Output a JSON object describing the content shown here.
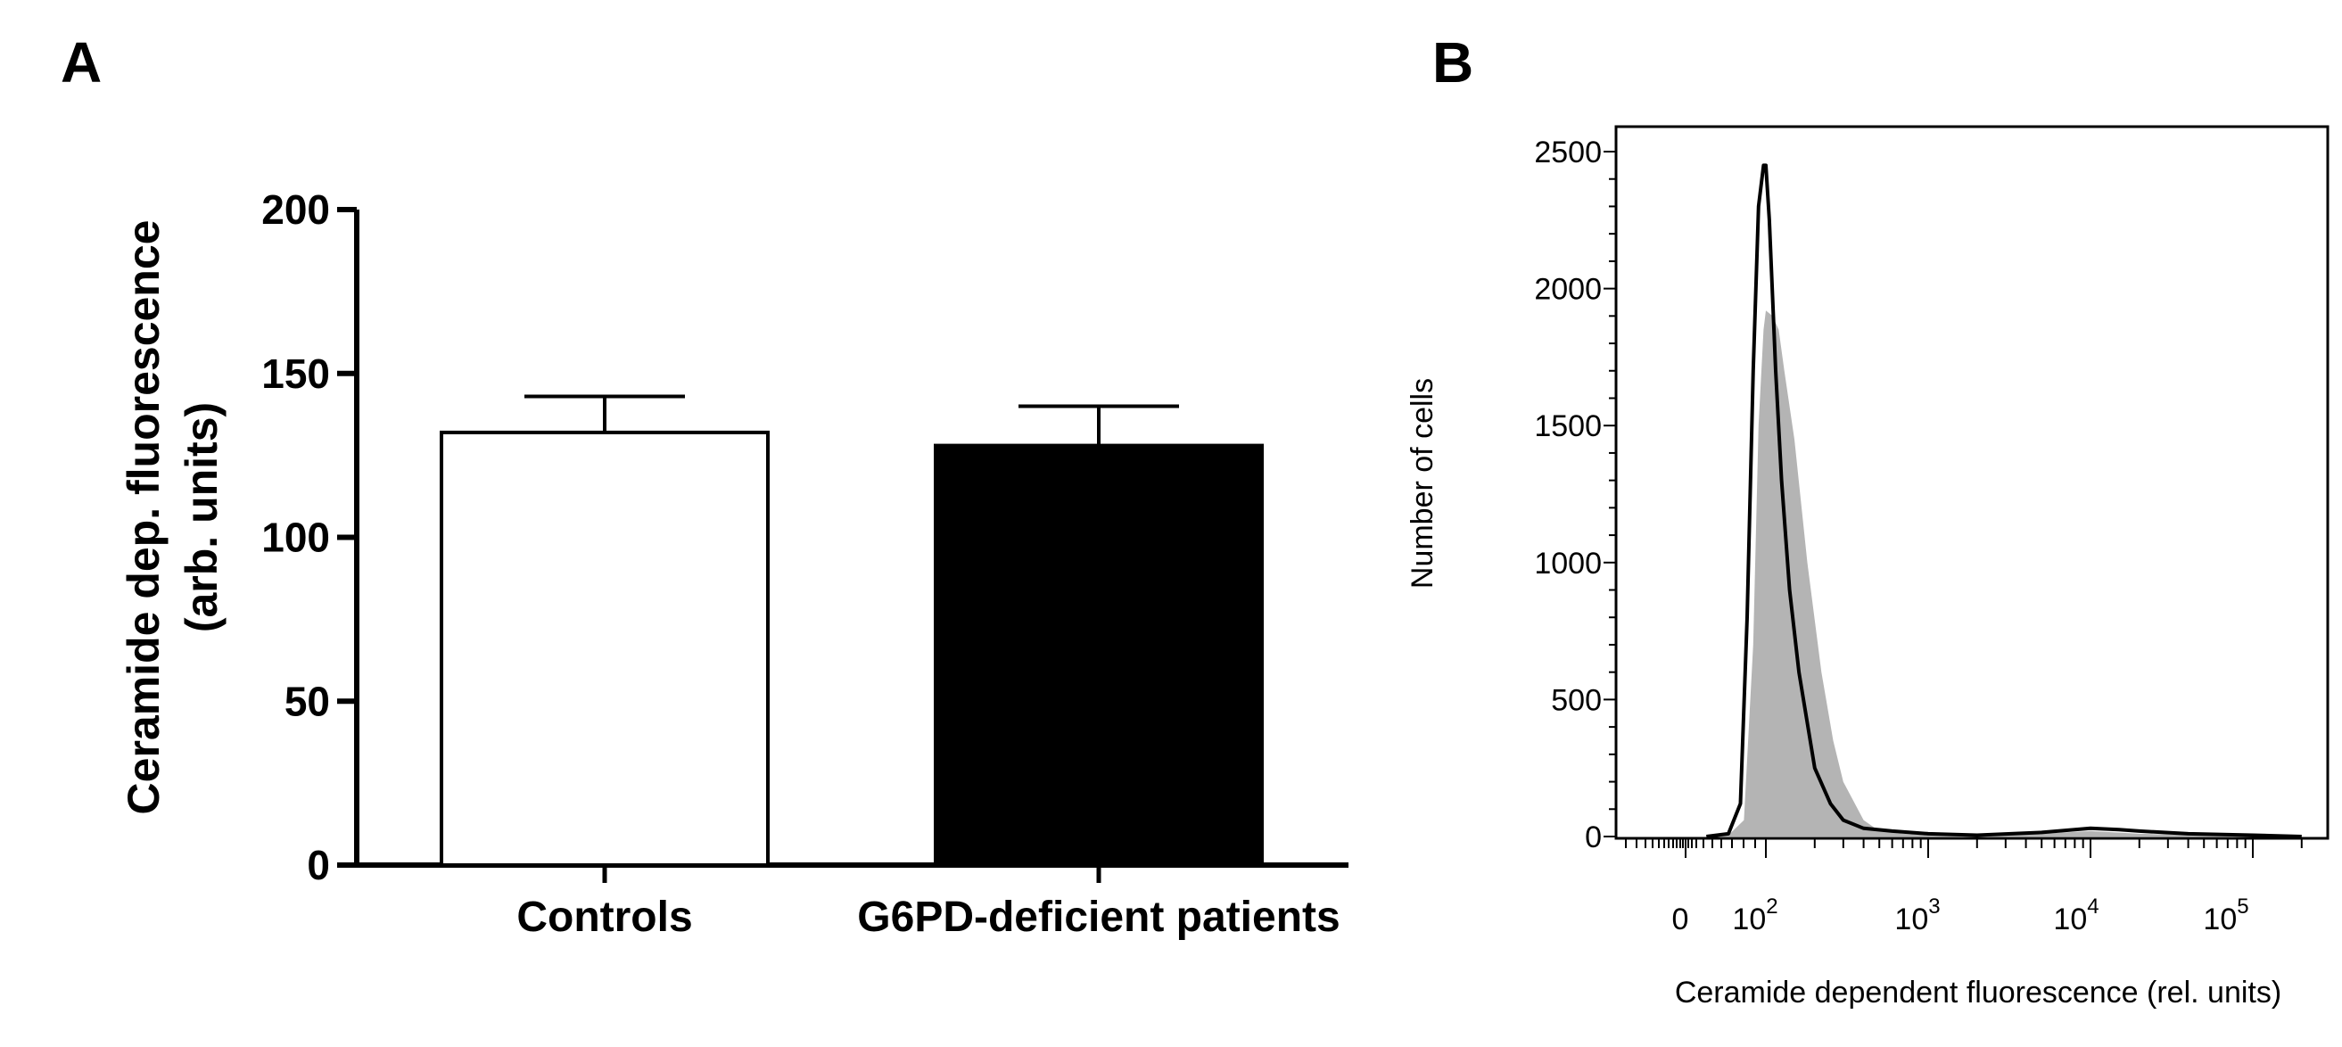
{
  "chart_data": [
    {
      "panel_label": "A",
      "type": "bar",
      "categories": [
        "Controls",
        "G6PD-deficient patients"
      ],
      "values": [
        132,
        128
      ],
      "errors_upper": [
        11,
        12
      ],
      "bar_fills": [
        "#ffffff",
        "#000000"
      ],
      "ylabel_line1": "Ceramide dep. fluorescence",
      "ylabel_line2": "(arb. units)",
      "ylim": [
        0,
        200
      ],
      "yticks": [
        0,
        50,
        100,
        150,
        200
      ],
      "grid": false
    },
    {
      "panel_label": "B",
      "type": "area",
      "xlabel": "Ceramide dependent fluorescence (rel. units)",
      "ylabel": "Number of cells",
      "ylim": [
        0,
        2500
      ],
      "yticks": [
        0,
        500,
        1000,
        1500,
        2000,
        2500
      ],
      "x_scale": "biexponential",
      "xticks": [
        {
          "label": "0",
          "base": "",
          "exp": ""
        },
        {
          "label": "10",
          "base": "10",
          "exp": "2"
        },
        {
          "label": "10",
          "base": "10",
          "exp": "3"
        },
        {
          "label": "10",
          "base": "10",
          "exp": "4"
        },
        {
          "label": "10",
          "base": "10",
          "exp": "5"
        }
      ],
      "grid": false,
      "series": [
        {
          "style": "filled-gray",
          "color": "#b4b4b4",
          "x": [
            20,
            40,
            60,
            75,
            85,
            95,
            100,
            110,
            120,
            130,
            150,
            180,
            220,
            260,
            300,
            400,
            500,
            700,
            1000,
            2000,
            5000,
            10000,
            20000,
            50000,
            100000,
            200000
          ],
          "y": [
            0,
            5,
            60,
            700,
            1500,
            1850,
            1920,
            1900,
            1850,
            1700,
            1450,
            1000,
            600,
            350,
            200,
            60,
            20,
            10,
            5,
            5,
            10,
            20,
            10,
            5,
            0,
            0
          ]
        },
        {
          "style": "black-line",
          "color": "#000000",
          "x": [
            20,
            40,
            55,
            65,
            75,
            85,
            95,
            100,
            105,
            115,
            125,
            140,
            160,
            200,
            250,
            300,
            400,
            600,
            1000,
            2000,
            5000,
            10000,
            15000,
            20000,
            40000,
            100000,
            200000
          ],
          "y": [
            0,
            10,
            120,
            800,
            1700,
            2300,
            2450,
            2450,
            2250,
            1700,
            1300,
            900,
            600,
            250,
            120,
            60,
            30,
            20,
            10,
            5,
            15,
            30,
            25,
            20,
            10,
            5,
            0
          ]
        }
      ]
    }
  ]
}
